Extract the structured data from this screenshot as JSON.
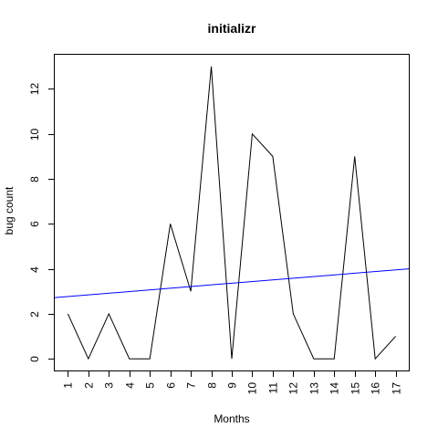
{
  "chart_data": {
    "type": "line",
    "title": "initializr",
    "xlabel": "Months",
    "ylabel": "bug count",
    "x": [
      1,
      2,
      3,
      4,
      5,
      6,
      7,
      8,
      9,
      10,
      11,
      12,
      13,
      14,
      15,
      16,
      17
    ],
    "x_tick_labels": [
      "1",
      "2",
      "3",
      "4",
      "5",
      "6",
      "7",
      "8",
      "9",
      "10",
      "11",
      "12",
      "13",
      "14",
      "15",
      "16",
      "17"
    ],
    "y_ticks": [
      0,
      2,
      4,
      6,
      8,
      10,
      12
    ],
    "y_tick_labels": [
      "0",
      "2",
      "4",
      "6",
      "8",
      "10",
      "12"
    ],
    "xlim": [
      0.36,
      17.64
    ],
    "ylim": [
      -0.52,
      13.52
    ],
    "grid": false,
    "series": [
      {
        "values": [
          2,
          0,
          2,
          0,
          0,
          6,
          3,
          13,
          0,
          10,
          9,
          2,
          0,
          0,
          9,
          0,
          1
        ],
        "color": "#000000"
      }
    ],
    "trend_line": {
      "x": [
        0.36,
        17.64
      ],
      "y": [
        2.72,
        4.0
      ],
      "color": "#0000ff"
    }
  }
}
